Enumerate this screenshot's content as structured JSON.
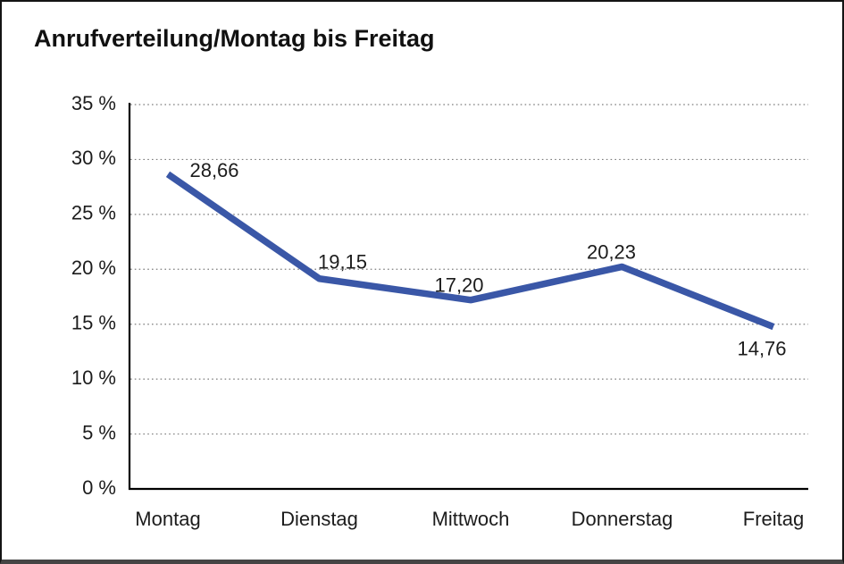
{
  "page": {
    "background_color": "#ffffff",
    "frame_border_color": "#141414"
  },
  "chart_data": {
    "type": "line",
    "title": "Anrufverteilung/Montag bis Freitag",
    "categories": [
      "Montag",
      "Dienstag",
      "Mittwoch",
      "Donnerstag",
      "Freitag"
    ],
    "values": [
      28.66,
      19.15,
      17.2,
      20.23,
      14.76
    ],
    "value_labels": [
      "28,66",
      "19,15",
      "17,20",
      "20,23",
      "14,76"
    ],
    "y_tick_labels": [
      "0 %",
      "5 %",
      "10 %",
      "15 %",
      "20 %",
      "25 %",
      "30 %",
      "35 %"
    ],
    "y_tick_values": [
      0,
      5,
      10,
      15,
      20,
      25,
      30,
      35
    ],
    "ylim": [
      0,
      35
    ],
    "grid": "horizontal-dotted",
    "legend": "none",
    "line_color": "#3A57A7",
    "axis_color": "#000000",
    "gridline_color": "#7d7d7d",
    "label_color": "#1c1c1c"
  }
}
